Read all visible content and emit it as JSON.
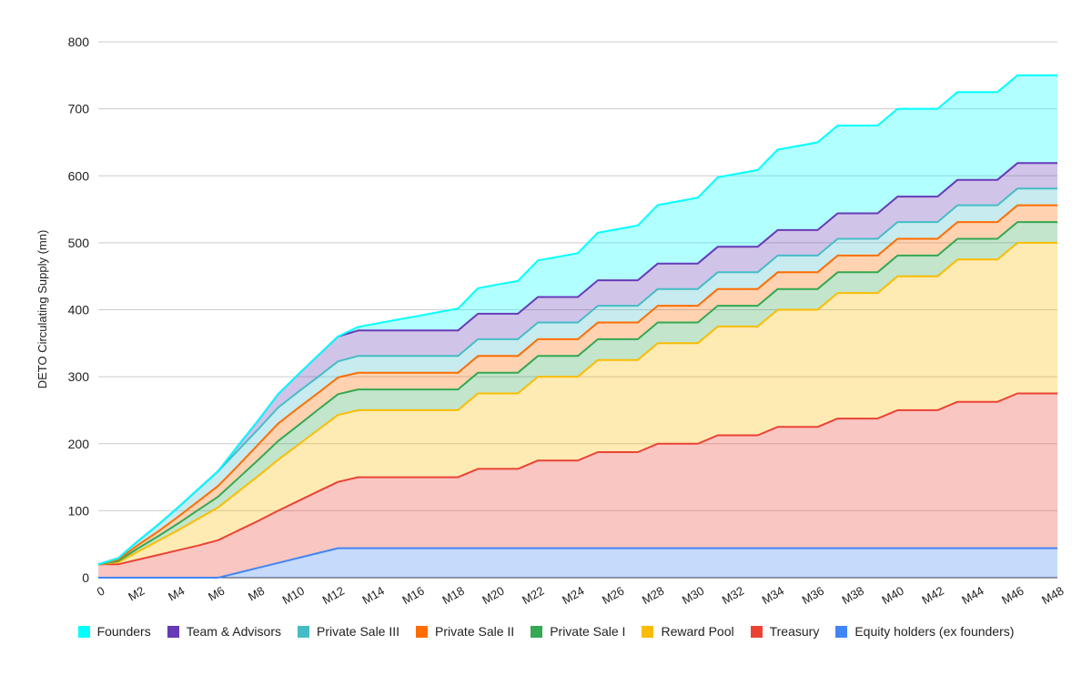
{
  "chart_data": {
    "type": "area",
    "stacked": true,
    "title": "",
    "xlabel": "",
    "ylabel": "DETO Circulating Supply (mn)",
    "ylim": [
      0,
      800
    ],
    "yticks": [
      0,
      100,
      200,
      300,
      400,
      500,
      600,
      700,
      800
    ],
    "grid": true,
    "legend_position": "bottom",
    "x": [
      "0",
      "M1",
      "M2",
      "M3",
      "M4",
      "M5",
      "M6",
      "M7",
      "M8",
      "M9",
      "M10",
      "M11",
      "M12",
      "M13",
      "M14",
      "M15",
      "M16",
      "M17",
      "M18",
      "M19",
      "M20",
      "M21",
      "M22",
      "M23",
      "M24",
      "M25",
      "M26",
      "M27",
      "M28",
      "M29",
      "M30",
      "M31",
      "M32",
      "M33",
      "M34",
      "M35",
      "M36",
      "M37",
      "M38",
      "M39",
      "M40",
      "M41",
      "M42",
      "M43",
      "M44",
      "M45",
      "M46",
      "M47",
      "M48"
    ],
    "xtick_labels": [
      "0",
      "M2",
      "M4",
      "M6",
      "M8",
      "M10",
      "M12",
      "M14",
      "M16",
      "M18",
      "M20",
      "M22",
      "M24",
      "M26",
      "M28",
      "M30",
      "M32",
      "M34",
      "M36",
      "M38",
      "M40",
      "M42",
      "M44",
      "M46",
      "M48"
    ],
    "series": [
      {
        "name": "Equity holders (ex founders)",
        "color": "#4285f4",
        "values": [
          0,
          0,
          0,
          0,
          0,
          0,
          0,
          7.3,
          14.7,
          22,
          29.3,
          36.7,
          44,
          44,
          44,
          44,
          44,
          44,
          44,
          44,
          44,
          44,
          44,
          44,
          44,
          44,
          44,
          44,
          44,
          44,
          44,
          44,
          44,
          44,
          44,
          44,
          44,
          44,
          44,
          44,
          44,
          44,
          44,
          44,
          44,
          44,
          44,
          44,
          44
        ]
      },
      {
        "name": "Treasury",
        "color": "#ea4335",
        "values": [
          20,
          20,
          27,
          34,
          41,
          48,
          56,
          63,
          70,
          78,
          85,
          92,
          99,
          106,
          106,
          106,
          106,
          106,
          106,
          118.5,
          118.5,
          118.5,
          131,
          131,
          131,
          143.5,
          143.5,
          143.5,
          156,
          156,
          156,
          168.5,
          168.5,
          168.5,
          181,
          181,
          181,
          193.5,
          193.5,
          193.5,
          206,
          206,
          206,
          218.5,
          218.5,
          218.5,
          231,
          231,
          231
        ]
      },
      {
        "name": "Reward Pool",
        "color": "#fbbc04",
        "values": [
          0,
          3,
          12,
          21,
          30,
          40,
          49,
          58,
          67,
          76,
          84,
          92,
          100,
          100,
          100,
          100,
          100,
          100,
          100,
          112.5,
          112.5,
          112.5,
          125,
          125,
          125,
          137.5,
          137.5,
          137.5,
          150,
          150,
          150,
          162.5,
          162.5,
          162.5,
          175,
          175,
          175,
          187.5,
          187.5,
          187.5,
          200,
          200,
          200,
          212.5,
          212.5,
          212.5,
          225,
          225,
          225
        ]
      },
      {
        "name": "Private Sale I",
        "color": "#34a853",
        "values": [
          0,
          2,
          5,
          7,
          10,
          13,
          16,
          20,
          24,
          28,
          29,
          30,
          31,
          31,
          31,
          31,
          31,
          31,
          31,
          31,
          31,
          31,
          31,
          31,
          31,
          31,
          31,
          31,
          31,
          31,
          31,
          31,
          31,
          31,
          31,
          31,
          31,
          31,
          31,
          31,
          31,
          31,
          31,
          31,
          31,
          31,
          31,
          31,
          31
        ]
      },
      {
        "name": "Private Sale II",
        "color": "#ff6d01",
        "values": [
          0,
          2,
          5,
          7,
          10,
          13,
          16,
          19,
          23,
          26,
          26,
          25,
          25,
          25,
          25,
          25,
          25,
          25,
          25,
          25,
          25,
          25,
          25,
          25,
          25,
          25,
          25,
          25,
          25,
          25,
          25,
          25,
          25,
          25,
          25,
          25,
          25,
          25,
          25,
          25,
          25,
          25,
          25,
          25,
          25,
          25,
          25,
          25,
          25
        ]
      },
      {
        "name": "Private Sale III",
        "color": "#46bdc6",
        "values": [
          0,
          2,
          6,
          10,
          14,
          18,
          22,
          23,
          23,
          24,
          24,
          24,
          24,
          25,
          25,
          25,
          25,
          25,
          25,
          25,
          25,
          25,
          25,
          25,
          25,
          25,
          25,
          25,
          25,
          25,
          25,
          25,
          25,
          25,
          25,
          25,
          25,
          25,
          25,
          25,
          25,
          25,
          25,
          25,
          25,
          25,
          25,
          25,
          25
        ]
      },
      {
        "name": "Team & Advisors",
        "color": "#673ab7",
        "values": [
          0,
          0,
          0,
          0,
          0,
          0,
          0,
          7,
          13,
          20,
          26,
          32,
          37,
          38,
          38,
          38,
          38,
          38,
          38,
          38,
          38,
          38,
          38,
          38,
          38,
          38,
          38,
          38,
          38,
          38,
          38,
          38,
          38,
          38,
          38,
          38,
          38,
          38,
          38,
          38,
          38,
          38,
          38,
          38,
          38,
          38,
          38,
          38,
          38
        ]
      },
      {
        "name": "Founders",
        "color": "#00ffff",
        "values": [
          0,
          0,
          0,
          0,
          0,
          0,
          0,
          0,
          0,
          0,
          0,
          0,
          0,
          5.5,
          10.9,
          16.4,
          21.8,
          27.3,
          32.8,
          38.2,
          43.7,
          49.1,
          54.6,
          60,
          65.5,
          71,
          76.4,
          81.9,
          87.3,
          92.8,
          98.3,
          103.7,
          109.2,
          114.6,
          120.1,
          125.5,
          131,
          131,
          131,
          131,
          131,
          131,
          131,
          131,
          131,
          131,
          131,
          131,
          131
        ]
      }
    ],
    "legend_order": [
      "Founders",
      "Team & Advisors",
      "Private Sale III",
      "Private Sale II",
      "Private Sale I",
      "Reward Pool",
      "Treasury",
      "Equity holders (ex founders)"
    ]
  },
  "legend": [
    {
      "label": "Founders",
      "color": "#00ffff"
    },
    {
      "label": "Team & Advisors",
      "color": "#673ab7"
    },
    {
      "label": "Private Sale III",
      "color": "#46bdc6"
    },
    {
      "label": "Private Sale II",
      "color": "#ff6d01"
    },
    {
      "label": "Private Sale I",
      "color": "#34a853"
    },
    {
      "label": "Reward Pool",
      "color": "#fbbc04"
    },
    {
      "label": "Treasury",
      "color": "#ea4335"
    },
    {
      "label": "Equity holders (ex founders)",
      "color": "#4285f4"
    }
  ]
}
